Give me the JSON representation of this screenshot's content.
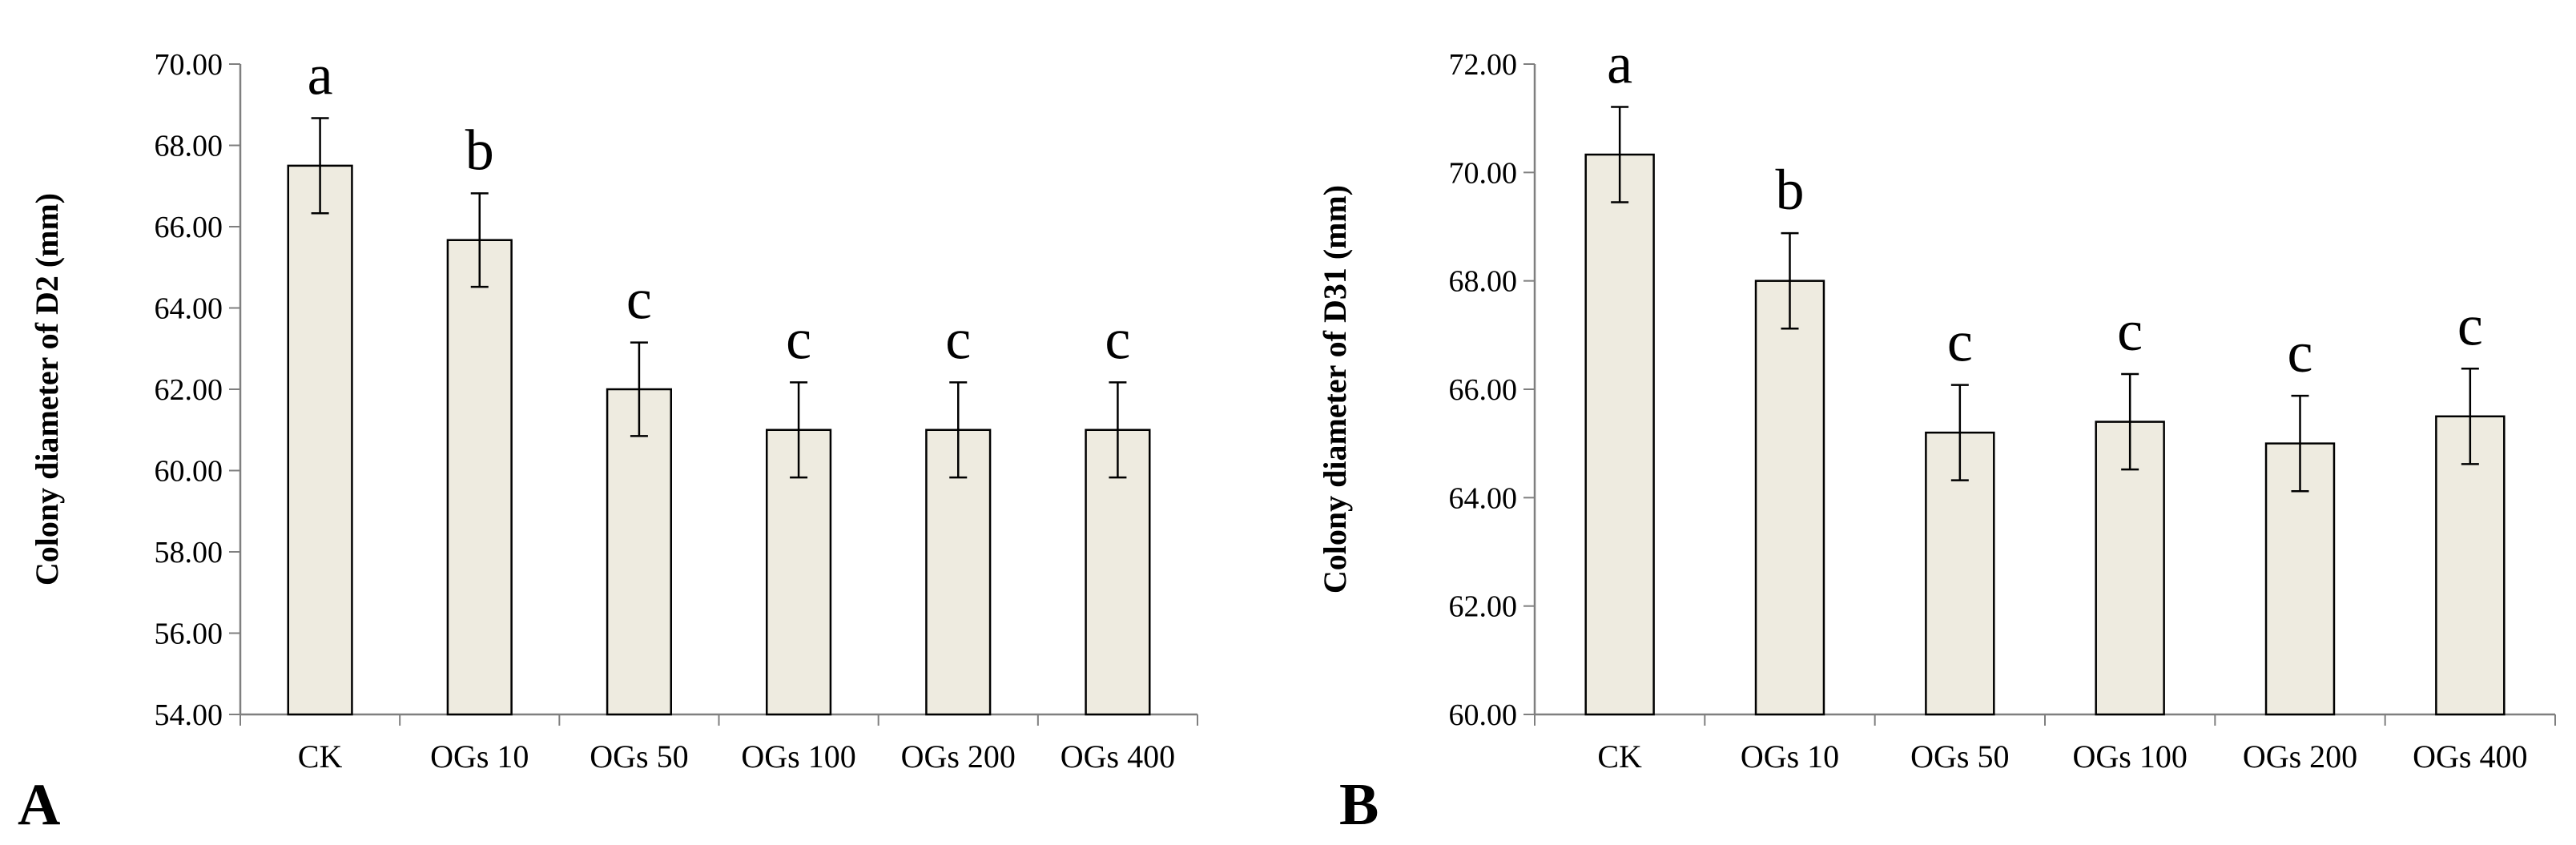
{
  "chart_data": [
    {
      "panel": "A",
      "type": "bar",
      "categories": [
        "CK",
        "OGs 10",
        "OGs 50",
        "OGs 100",
        "OGs 200",
        "OGs 400"
      ],
      "values": [
        67.5,
        65.67,
        62.0,
        61.0,
        61.0,
        61.0
      ],
      "errors": [
        1.17,
        1.15,
        1.15,
        1.17,
        1.17,
        1.17
      ],
      "significance": [
        "a",
        "b",
        "c",
        "c",
        "c",
        "c"
      ],
      "ylabel": "Colony diameter of D2 (mm)",
      "xlabel": "",
      "ylim": [
        54,
        70
      ],
      "yticks": [
        "54.00",
        "56.00",
        "58.00",
        "60.00",
        "62.00",
        "64.00",
        "66.00",
        "68.00",
        "70.00"
      ],
      "bar_color": "#eeebe0",
      "grid": false
    },
    {
      "panel": "B",
      "type": "bar",
      "categories": [
        "CK",
        "OGs 10",
        "OGs 50",
        "OGs 100",
        "OGs 200",
        "OGs 400"
      ],
      "values": [
        70.33,
        68.0,
        65.2,
        65.4,
        65.0,
        65.5
      ],
      "errors": [
        0.88,
        0.88,
        0.88,
        0.88,
        0.88,
        0.88
      ],
      "significance": [
        "a",
        "b",
        "c",
        "c",
        "c",
        "c"
      ],
      "ylabel": "Colony diameter of D31 (mm)",
      "xlabel": "",
      "ylim": [
        60,
        72
      ],
      "yticks": [
        "60.00",
        "62.00",
        "64.00",
        "66.00",
        "68.00",
        "70.00",
        "72.00"
      ],
      "bar_color": "#eeebe0",
      "grid": false
    }
  ],
  "panel_labels": {
    "a": "A",
    "b": "B"
  }
}
